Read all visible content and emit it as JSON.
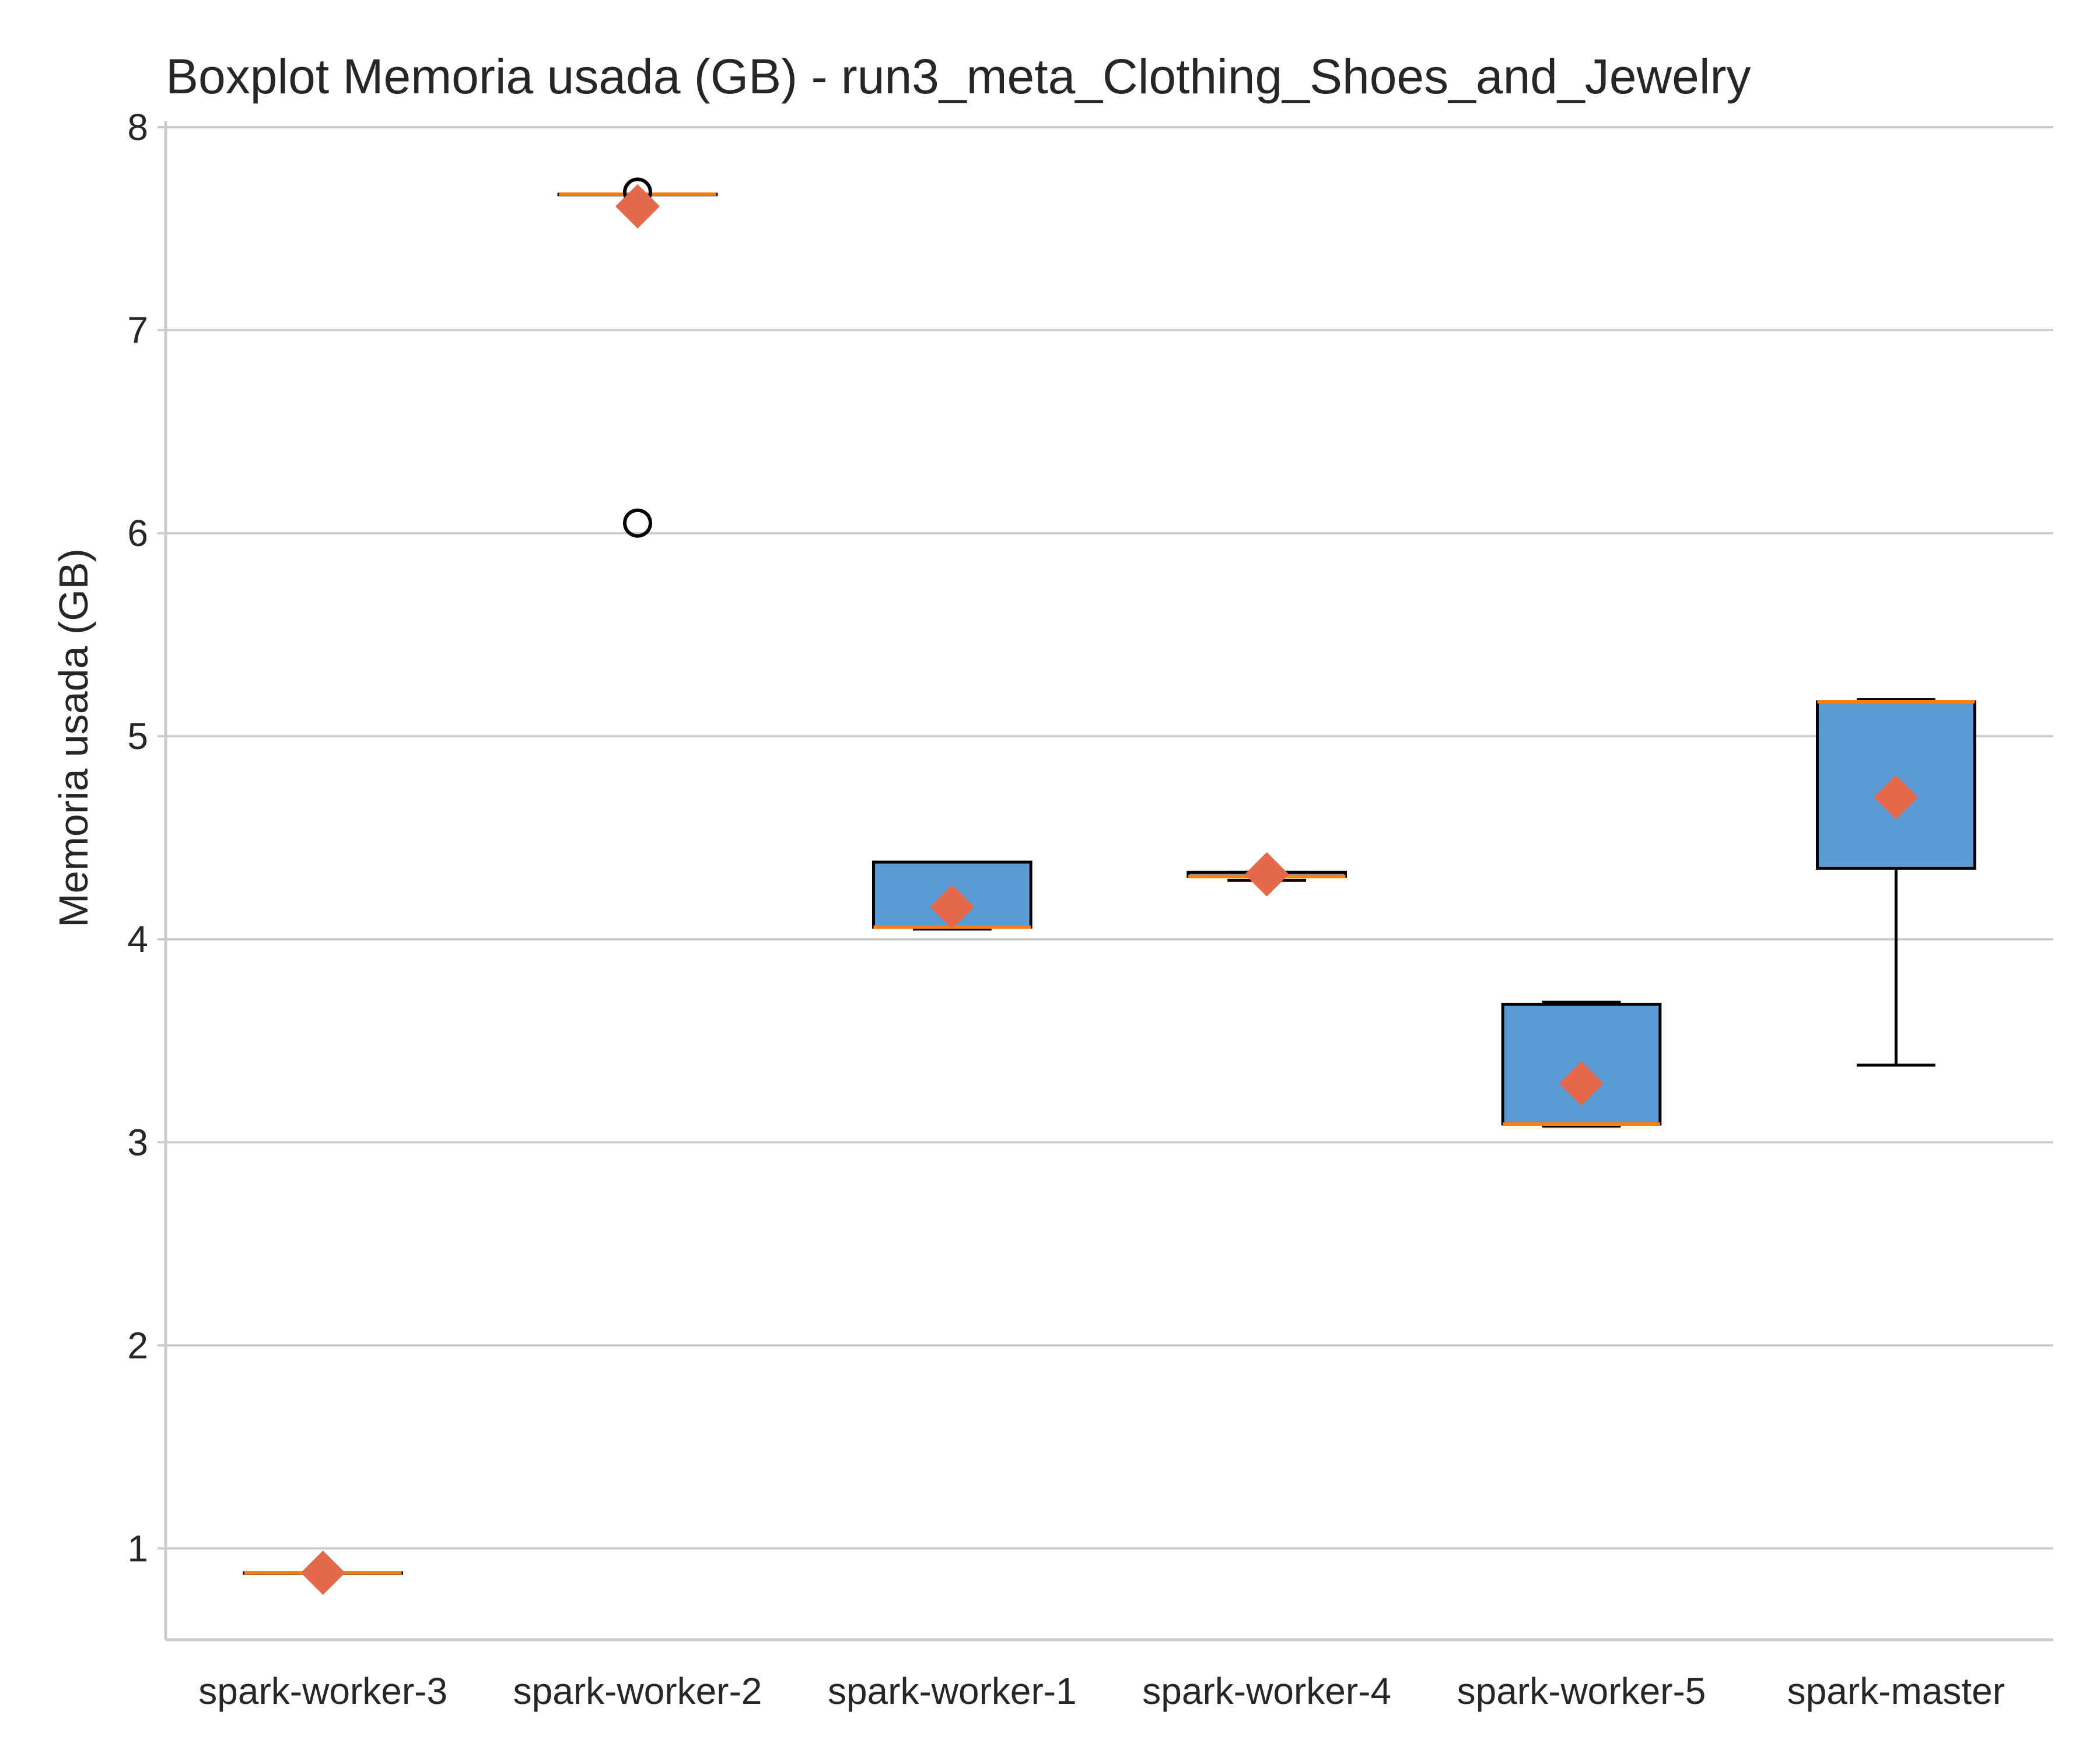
{
  "chart_data": {
    "type": "boxplot",
    "title": "Boxplot Memoria usada (GB) - run3_meta_Clothing_Shoes_and_Jewelry",
    "xlabel": "",
    "ylabel": "Memoria usada (GB)",
    "ylim": [
      0.55,
      8.0
    ],
    "yticks": [
      "1",
      "2",
      "3",
      "4",
      "5",
      "6",
      "7",
      "8"
    ],
    "grid": "horizontal",
    "categories": [
      "spark-worker-3",
      "spark-worker-2",
      "spark-worker-1",
      "spark-worker-4",
      "spark-worker-5",
      "spark-master"
    ],
    "boxes": [
      {
        "whisker_low": 0.88,
        "q1": 0.88,
        "median": 0.88,
        "q3": 0.88,
        "whisker_high": 0.88,
        "mean": 0.88,
        "outliers": []
      },
      {
        "whisker_low": 7.67,
        "q1": 7.67,
        "median": 7.67,
        "q3": 7.67,
        "whisker_high": 7.67,
        "mean": 7.61,
        "outliers": [
          6.05,
          7.68
        ]
      },
      {
        "whisker_low": 4.05,
        "q1": 4.06,
        "median": 4.06,
        "q3": 4.38,
        "whisker_high": 4.38,
        "mean": 4.16,
        "outliers": []
      },
      {
        "whisker_low": 4.29,
        "q1": 4.31,
        "median": 4.31,
        "q3": 4.33,
        "whisker_high": 4.33,
        "mean": 4.32,
        "outliers": []
      },
      {
        "whisker_low": 3.08,
        "q1": 3.09,
        "median": 3.09,
        "q3": 3.68,
        "whisker_high": 3.69,
        "mean": 3.29,
        "outliers": []
      },
      {
        "whisker_low": 3.38,
        "q1": 4.35,
        "median": 5.17,
        "q3": 5.17,
        "whisker_high": 5.18,
        "mean": 4.7,
        "outliers": []
      }
    ],
    "colors": {
      "box_fill": "#5b9bd5",
      "box_edge": "#000000",
      "median": "#ff7f0e",
      "mean_marker": "#e4694b",
      "grid": "#cccccc",
      "axis": "#cccccc"
    }
  }
}
